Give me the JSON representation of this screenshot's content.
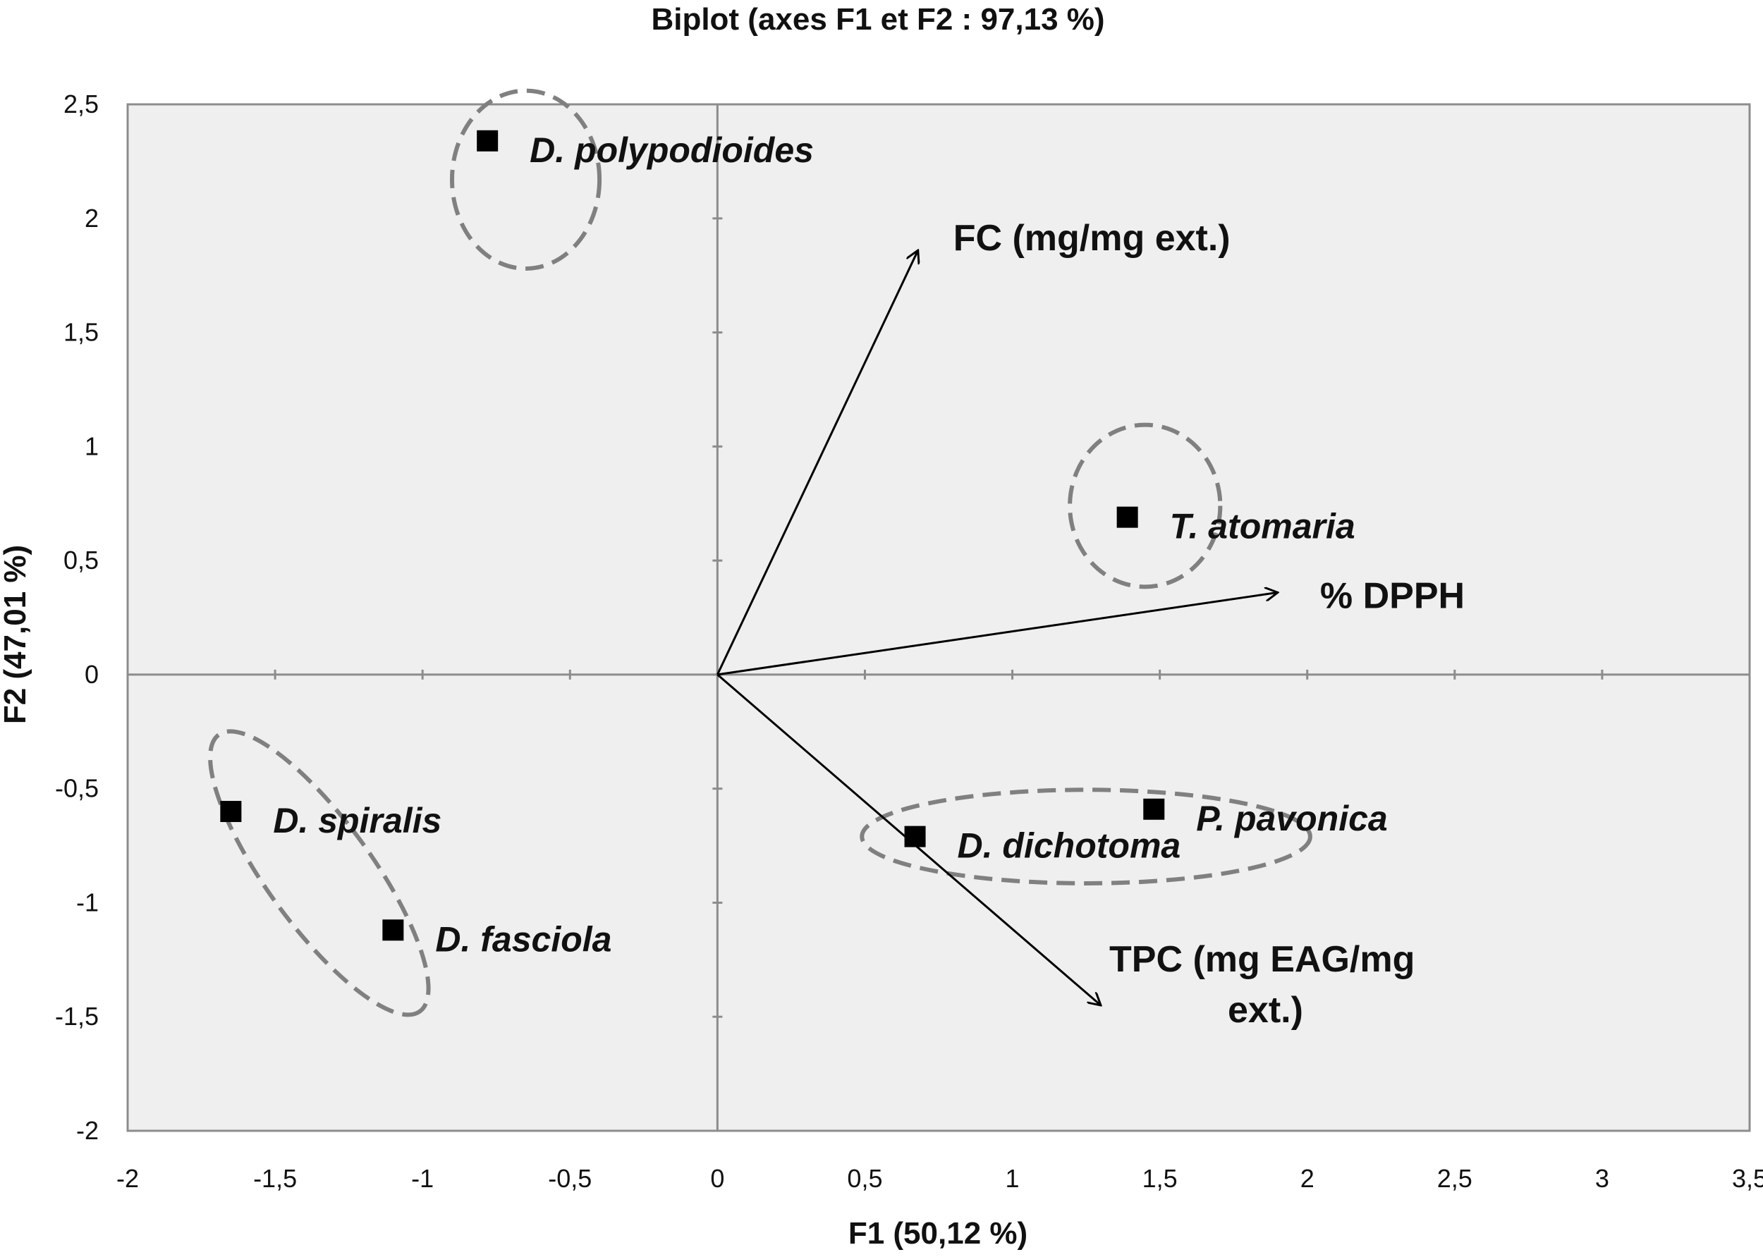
{
  "chart_data": {
    "type": "scatter",
    "title": "Biplot (axes F1 et F2 : 97,13 %)",
    "xlabel": "F1 (50,12 %)",
    "ylabel": "F2 (47,01 %)",
    "xlim": [
      -2,
      3.5
    ],
    "ylim": [
      -2,
      2.5
    ],
    "x_ticks": [
      -2,
      -1.5,
      -1,
      -0.5,
      0,
      0.5,
      1,
      1.5,
      2,
      2.5,
      3,
      3.5
    ],
    "x_tick_labels": [
      "-2",
      "-1,5",
      "-1",
      "-0,5",
      "0",
      "0,5",
      "1",
      "1,5",
      "2",
      "2,5",
      "3",
      "3,5"
    ],
    "y_ticks": [
      -2,
      -1.5,
      -1,
      -0.5,
      0,
      0.5,
      1,
      1.5,
      2,
      2.5
    ],
    "y_tick_labels": [
      "-2",
      "-1,5",
      "-1",
      "-0,5",
      "0",
      "0,5",
      "1",
      "1,5",
      "2",
      "2,5"
    ],
    "grid": false,
    "observations": [
      {
        "label": "D. polypodioides",
        "x": -0.78,
        "y": 2.34
      },
      {
        "label": "T. atomaria",
        "x": 1.39,
        "y": 0.69
      },
      {
        "label": "D. spiralis",
        "x": -1.65,
        "y": -0.6
      },
      {
        "label": "D. fasciola",
        "x": -1.1,
        "y": -1.12
      },
      {
        "label": "D. dichotoma",
        "x": 0.67,
        "y": -0.71
      },
      {
        "label": "P. pavonica",
        "x": 1.48,
        "y": -0.59
      }
    ],
    "variables": [
      {
        "label": "FC (mg/mg ext.)",
        "x": 0.68,
        "y": 1.86
      },
      {
        "label": "% DPPH",
        "x": 1.9,
        "y": 0.36
      },
      {
        "label": "TPC (mg EAG/mg ext.)",
        "x": 1.3,
        "y": -1.45
      }
    ],
    "groups": [
      {
        "members": [
          "D. polypodioides"
        ],
        "center": [
          -0.65,
          2.17
        ],
        "radii": [
          0.25,
          0.39
        ],
        "rotation": 0
      },
      {
        "members": [
          "T. atomaria"
        ],
        "center": [
          1.45,
          0.74
        ],
        "radii": [
          0.255,
          0.355
        ],
        "rotation": 0
      },
      {
        "members": [
          "D. spiralis",
          "D. fasciola"
        ],
        "center": [
          -1.35,
          -0.87
        ],
        "radii": [
          0.58,
          0.23
        ],
        "rotation": 54
      },
      {
        "members": [
          "D. dichotoma",
          "P. pavonica"
        ],
        "center": [
          1.25,
          -0.71
        ],
        "radii": [
          0.76,
          0.205
        ],
        "rotation": 0
      }
    ],
    "colors": {
      "plot_background": "#efefef",
      "axis_lines": "#8c8c8c",
      "points": "#000000",
      "arrows": "#000000",
      "group_ellipses": "#808080"
    }
  }
}
